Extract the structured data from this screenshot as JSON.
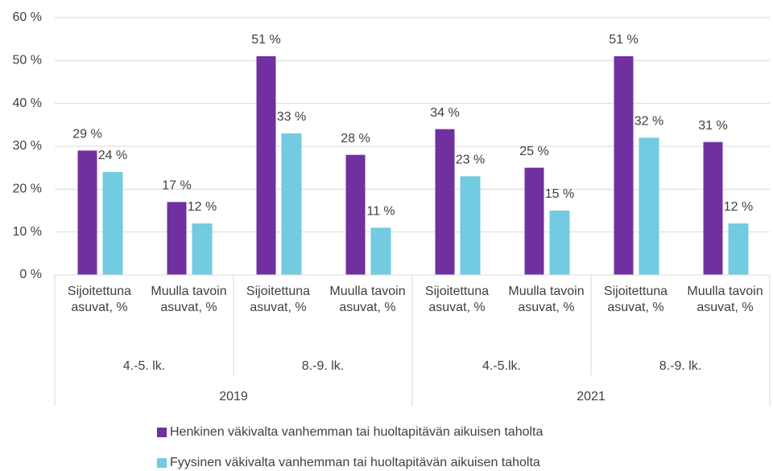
{
  "chart_data": {
    "type": "bar",
    "categories": [
      "Sijoitettuna asuvat, %",
      "Muulla tavoin asuvat, %",
      "Sijoitettuna asuvat, %",
      "Muulla tavoin asuvat, %",
      "Sijoitettuna asuvat, %",
      "Muulla tavoin asuvat, %",
      "Sijoitettuna asuvat, %",
      "Muulla tavoin asuvat, %"
    ],
    "grades": [
      "4.-5. lk.",
      "8.-9. lk.",
      "4.-5.lk.",
      "8.-9. lk."
    ],
    "years": [
      "2019",
      "2021"
    ],
    "series": [
      {
        "name": "Henkinen väkivalta vanhemman tai huoltapitävän aikuisen taholta",
        "color": "#7030a0",
        "values": [
          29,
          17,
          51,
          28,
          34,
          25,
          51,
          31
        ],
        "value_labels": [
          "29 %",
          "17 %",
          "51 %",
          "28 %",
          "34 %",
          "25 %",
          "51 %",
          "31 %"
        ]
      },
      {
        "name": "Fyysinen väkivalta vanhemman tai huoltapitävän aikuisen taholta",
        "color": "#72cbe0",
        "values": [
          24,
          12,
          33,
          11,
          23,
          15,
          32,
          12
        ],
        "value_labels": [
          "24 %",
          "12 %",
          "33 %",
          "11 %",
          "23 %",
          "15 %",
          "32 %",
          "12 %"
        ]
      }
    ],
    "ylim": [
      0,
      60
    ],
    "yticks": [
      {
        "value": 0,
        "label": "0 %"
      },
      {
        "value": 10,
        "label": "10 %"
      },
      {
        "value": 20,
        "label": "20 %"
      },
      {
        "value": 30,
        "label": "30 %"
      },
      {
        "value": 40,
        "label": "40 %"
      },
      {
        "value": 50,
        "label": "50 %"
      },
      {
        "value": 60,
        "label": "60 %"
      }
    ],
    "grid": true
  }
}
